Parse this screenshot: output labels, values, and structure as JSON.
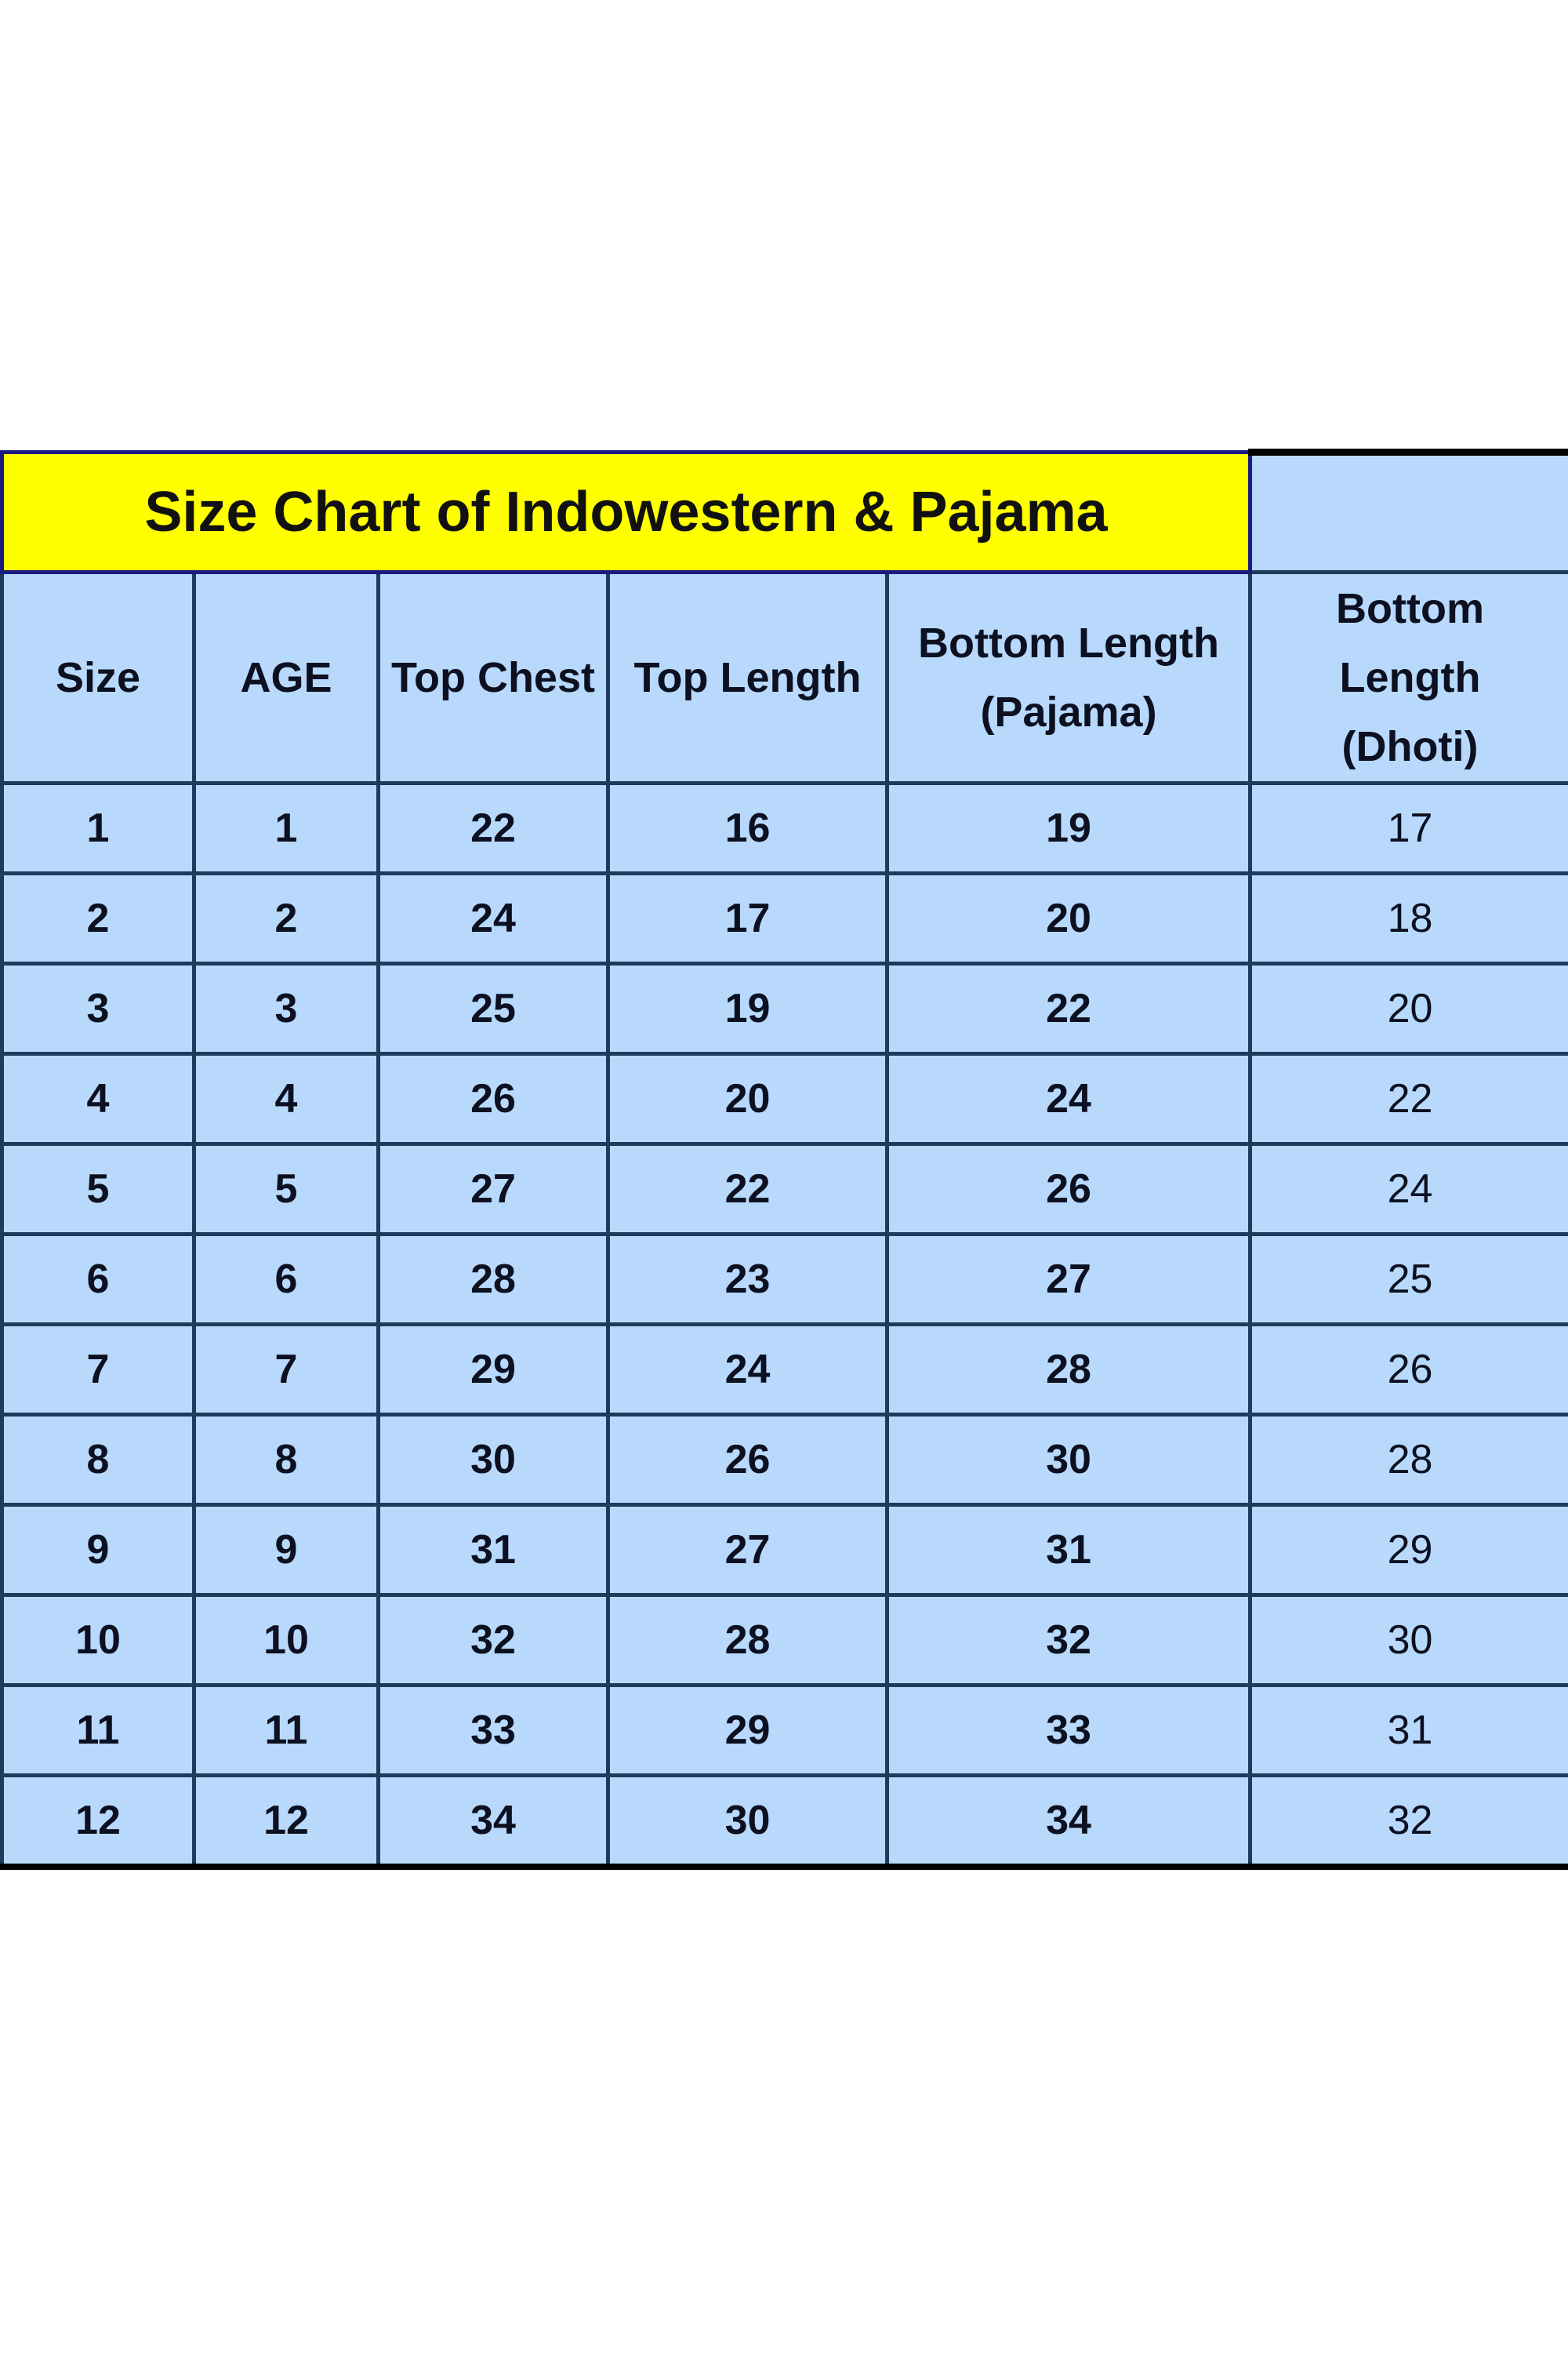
{
  "title": "Size Chart of Indowestern &  Pajama",
  "colors": {
    "title_bg": "#ffff00",
    "cell_bg": "#b8d9fb",
    "border": "#1f3a5c"
  },
  "headers": [
    "Size",
    "AGE",
    "Top Chest",
    "Top Length",
    "Bottom Length (Pajama)",
    "Bottom Length (Dhoti)"
  ],
  "rows": [
    [
      "1",
      "1",
      "22",
      "16",
      "19",
      "17"
    ],
    [
      "2",
      "2",
      "24",
      "17",
      "20",
      "18"
    ],
    [
      "3",
      "3",
      "25",
      "19",
      "22",
      "20"
    ],
    [
      "4",
      "4",
      "26",
      "20",
      "24",
      "22"
    ],
    [
      "5",
      "5",
      "27",
      "22",
      "26",
      "24"
    ],
    [
      "6",
      "6",
      "28",
      "23",
      "27",
      "25"
    ],
    [
      "7",
      "7",
      "29",
      "24",
      "28",
      "26"
    ],
    [
      "8",
      "8",
      "30",
      "26",
      "30",
      "28"
    ],
    [
      "9",
      "9",
      "31",
      "27",
      "31",
      "29"
    ],
    [
      "10",
      "10",
      "32",
      "28",
      "32",
      "30"
    ],
    [
      "11",
      "11",
      "33",
      "29",
      "33",
      "31"
    ],
    [
      "12",
      "12",
      "34",
      "30",
      "34",
      "32"
    ]
  ]
}
